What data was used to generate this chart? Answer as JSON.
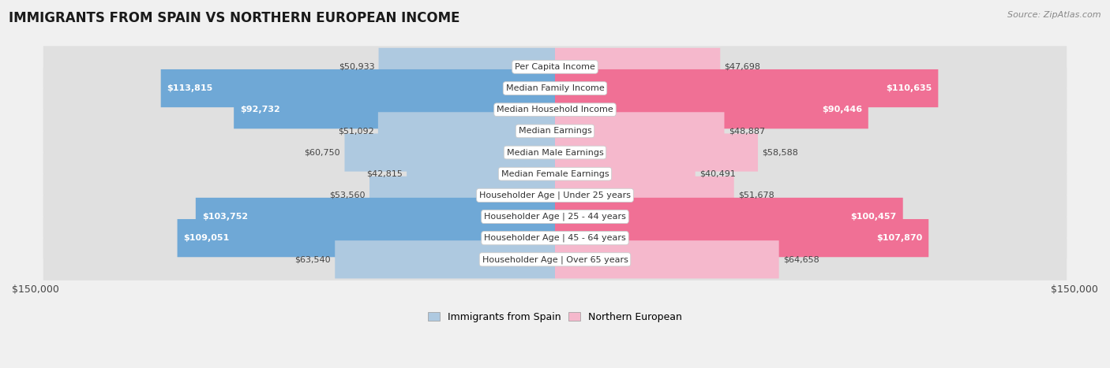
{
  "title": "IMMIGRANTS FROM SPAIN VS NORTHERN EUROPEAN INCOME",
  "source": "Source: ZipAtlas.com",
  "categories": [
    "Per Capita Income",
    "Median Family Income",
    "Median Household Income",
    "Median Earnings",
    "Median Male Earnings",
    "Median Female Earnings",
    "Householder Age | Under 25 years",
    "Householder Age | 25 - 44 years",
    "Householder Age | 45 - 64 years",
    "Householder Age | Over 65 years"
  ],
  "spain_values": [
    50933,
    113815,
    92732,
    51092,
    60750,
    42815,
    53560,
    103752,
    109051,
    63540
  ],
  "northern_values": [
    47698,
    110635,
    90446,
    48887,
    58588,
    40491,
    51678,
    100457,
    107870,
    64658
  ],
  "spain_labels": [
    "$50,933",
    "$113,815",
    "$92,732",
    "$51,092",
    "$60,750",
    "$42,815",
    "$53,560",
    "$103,752",
    "$109,051",
    "$63,540"
  ],
  "northern_labels": [
    "$47,698",
    "$110,635",
    "$90,446",
    "$48,887",
    "$58,588",
    "$40,491",
    "$51,678",
    "$100,457",
    "$107,870",
    "$64,658"
  ],
  "spain_color_light": "#aec9e0",
  "spain_color_dark": "#6fa8d6",
  "northern_color_light": "#f5b8cc",
  "northern_color_dark": "#f07095",
  "max_value": 150000,
  "background_color": "#f0f0f0",
  "row_bg_color": "#e8e8e8",
  "inside_threshold": 70000,
  "legend_spain": "Immigrants from Spain",
  "legend_northern": "Northern European",
  "label_fontsize": 8.0,
  "cat_fontsize": 8.0
}
